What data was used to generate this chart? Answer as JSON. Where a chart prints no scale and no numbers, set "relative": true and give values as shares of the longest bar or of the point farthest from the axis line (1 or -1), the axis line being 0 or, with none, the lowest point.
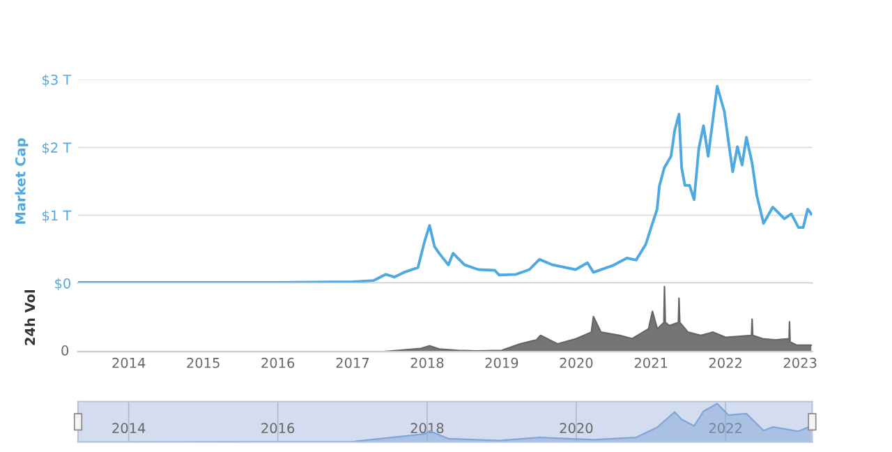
{
  "chart_data": [
    {
      "type": "line",
      "ylabel": "Market Cap",
      "x": [
        "2013-04-29",
        "2014-01-01",
        "2015-01-01",
        "2016-01-01",
        "2017-01-01",
        "2017-04-15",
        "2017-06-13",
        "2017-07-24",
        "2017-09-10",
        "2017-11-17",
        "2017-12-20",
        "2018-01-13",
        "2018-02-06",
        "2018-03-01",
        "2018-04-15",
        "2018-05-08",
        "2018-07-03",
        "2018-09-09",
        "2018-11-28",
        "2018-12-20",
        "2019-03-11",
        "2019-05-16",
        "2019-07-05",
        "2019-09-07",
        "2019-12-29",
        "2020-02-25",
        "2020-03-25",
        "2020-06-28",
        "2020-09-05",
        "2020-10-20",
        "2020-12-06",
        "2021-01-08",
        "2021-01-31",
        "2021-02-11",
        "2021-03-07",
        "2021-04-09",
        "2021-04-27",
        "2021-05-18",
        "2021-05-31",
        "2021-06-16",
        "2021-07-09",
        "2021-07-31",
        "2021-08-23",
        "2021-09-15",
        "2021-10-08",
        "2021-11-21",
        "2021-12-26",
        "2022-02-05",
        "2022-02-28",
        "2022-03-23",
        "2022-04-13",
        "2022-05-11",
        "2022-06-03",
        "2022-07-06",
        "2022-08-20",
        "2022-10-16",
        "2022-11-19",
        "2022-12-24",
        "2023-01-16",
        "2023-02-07",
        "2023-02-25"
      ],
      "series": [
        {
          "color": "#4ea9e0",
          "values": [
            0.01,
            0.01,
            0.01,
            0.01,
            0.02,
            0.04,
            0.13,
            0.09,
            0.16,
            0.23,
            0.62,
            0.85,
            0.54,
            0.44,
            0.27,
            0.44,
            0.27,
            0.2,
            0.19,
            0.12,
            0.13,
            0.2,
            0.35,
            0.27,
            0.2,
            0.3,
            0.16,
            0.26,
            0.37,
            0.34,
            0.57,
            0.88,
            1.09,
            1.43,
            1.7,
            1.87,
            2.25,
            2.49,
            1.7,
            1.44,
            1.44,
            1.23,
            1.98,
            2.32,
            1.87,
            2.9,
            2.53,
            1.64,
            2.01,
            1.74,
            2.15,
            1.77,
            1.29,
            0.88,
            1.12,
            0.95,
            1.02,
            0.82,
            0.82,
            1.09,
            1.02
          ]
        }
      ],
      "xlim": [
        "2013-04-28",
        "2023-03-01"
      ],
      "ylim": [
        0,
        3
      ],
      "yticks": [
        {
          "value": 0,
          "label": "$0"
        },
        {
          "value": 1,
          "label": "$1 T"
        },
        {
          "value": 2,
          "label": "$2 T"
        },
        {
          "value": 3,
          "label": "$3 T"
        }
      ],
      "grid": "y",
      "tick_labels": "y",
      "line_style": "solid"
    },
    {
      "type": "area",
      "ylabel": "24h Vol",
      "relative": true,
      "annotations": [
        "0"
      ],
      "x": [
        "2013-04-29",
        "2017-06-01",
        "2017-12-01",
        "2018-01-13",
        "2018-03-01",
        "2018-06-01",
        "2018-09-01",
        "2019-01-01",
        "2019-04-01",
        "2019-06-20",
        "2019-07-10",
        "2019-10-01",
        "2020-01-01",
        "2020-03-15",
        "2020-03-25",
        "2020-05-01",
        "2020-08-01",
        "2020-10-01",
        "2020-12-20",
        "2021-01-08",
        "2021-02-01",
        "2021-03-05",
        "2021-03-08",
        "2021-03-12",
        "2021-04-01",
        "2021-05-15",
        "2021-05-18",
        "2021-05-22",
        "2021-07-01",
        "2021-09-01",
        "2021-11-01",
        "2022-01-01",
        "2022-05-08",
        "2022-05-11",
        "2022-05-14",
        "2022-07-01",
        "2022-09-01",
        "2022-11-08",
        "2022-11-10",
        "2022-11-13",
        "2022-12-15",
        "2023-02-25"
      ],
      "series": [
        {
          "color": "#666666",
          "values": [
            0,
            0,
            0.05,
            0.09,
            0.04,
            0.02,
            0.01,
            0.02,
            0.12,
            0.18,
            0.25,
            0.12,
            0.2,
            0.3,
            0.54,
            0.3,
            0.25,
            0.2,
            0.35,
            0.62,
            0.35,
            0.45,
            1.0,
            0.45,
            0.4,
            0.45,
            0.82,
            0.45,
            0.3,
            0.25,
            0.3,
            0.22,
            0.25,
            0.5,
            0.25,
            0.2,
            0.18,
            0.2,
            0.46,
            0.15,
            0.1,
            0.1
          ]
        }
      ],
      "xlim": [
        "2013-04-28",
        "2023-03-01"
      ],
      "xticks": [
        {
          "value": "2014-01-01",
          "label": "2014"
        },
        {
          "value": "2015-01-01",
          "label": "2015"
        },
        {
          "value": "2016-01-01",
          "label": "2016"
        },
        {
          "value": "2017-01-01",
          "label": "2017"
        },
        {
          "value": "2018-01-01",
          "label": "2018"
        },
        {
          "value": "2019-01-01",
          "label": "2019"
        },
        {
          "value": "2020-01-01",
          "label": "2020"
        },
        {
          "value": "2021-01-01",
          "label": "2021"
        },
        {
          "value": "2022-01-01",
          "label": "2022"
        },
        {
          "value": "2023-01-01",
          "label": "2023"
        }
      ],
      "tick_labels": "x"
    },
    {
      "type": "area",
      "relative": true,
      "x": [
        "2013-04-29",
        "2017-01-01",
        "2017-12-20",
        "2018-01-13",
        "2018-04-15",
        "2018-12-20",
        "2019-07-05",
        "2020-03-25",
        "2020-10-20",
        "2021-01-31",
        "2021-04-27",
        "2021-05-31",
        "2021-07-31",
        "2021-09-15",
        "2021-11-21",
        "2022-01-15",
        "2022-04-13",
        "2022-07-06",
        "2022-08-20",
        "2022-12-24",
        "2023-02-07",
        "2023-02-25"
      ],
      "series": [
        {
          "color": "#7fa6d8",
          "values": [
            0,
            0.01,
            0.21,
            0.29,
            0.09,
            0.04,
            0.12,
            0.06,
            0.12,
            0.38,
            0.78,
            0.59,
            0.42,
            0.8,
            1.0,
            0.7,
            0.74,
            0.3,
            0.39,
            0.28,
            0.38,
            0.35
          ]
        }
      ],
      "xlim": [
        "2013-04-28",
        "2023-03-01"
      ],
      "xticks": [
        {
          "value": "2014-01-01",
          "label": "2014"
        },
        {
          "value": "2016-01-01",
          "label": "2016"
        },
        {
          "value": "2018-01-01",
          "label": "2018"
        },
        {
          "value": "2020-01-01",
          "label": "2020"
        },
        {
          "value": "2022-01-01",
          "label": "2022"
        }
      ],
      "grid": "x",
      "tick_labels": "x"
    }
  ]
}
